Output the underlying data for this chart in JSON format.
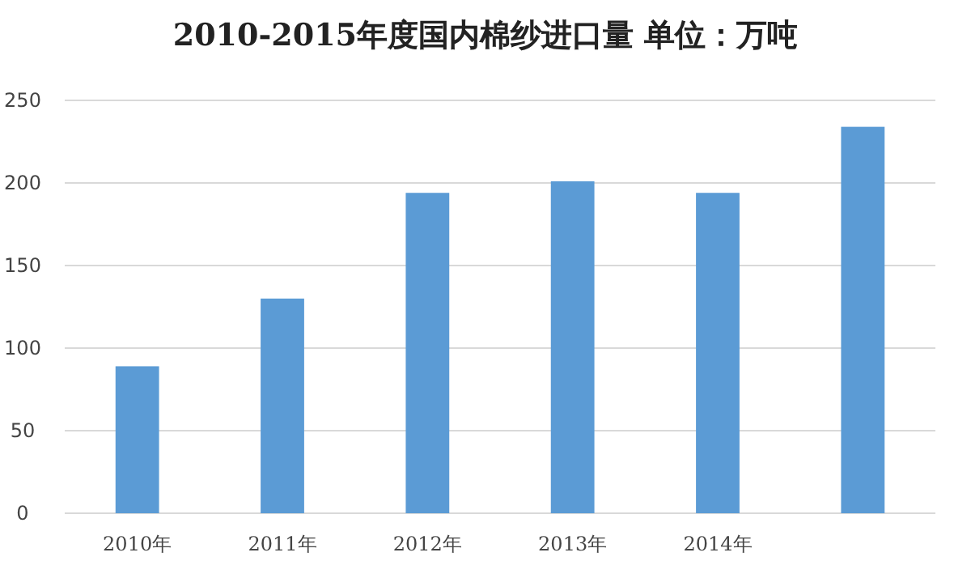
{
  "chart_data": {
    "type": "bar",
    "title": "2010-2015年度国内棉纱进口量    单位：万吨",
    "categories": [
      "2010年",
      "2011年",
      "2012年",
      "2013年",
      "2014年",
      null
    ],
    "values": [
      89,
      130,
      194,
      201,
      194,
      234
    ],
    "color": "#5b9bd5",
    "ylim": [
      0,
      250
    ],
    "yticks": [
      0,
      50,
      100,
      150,
      200,
      250
    ],
    "grid": "y"
  }
}
